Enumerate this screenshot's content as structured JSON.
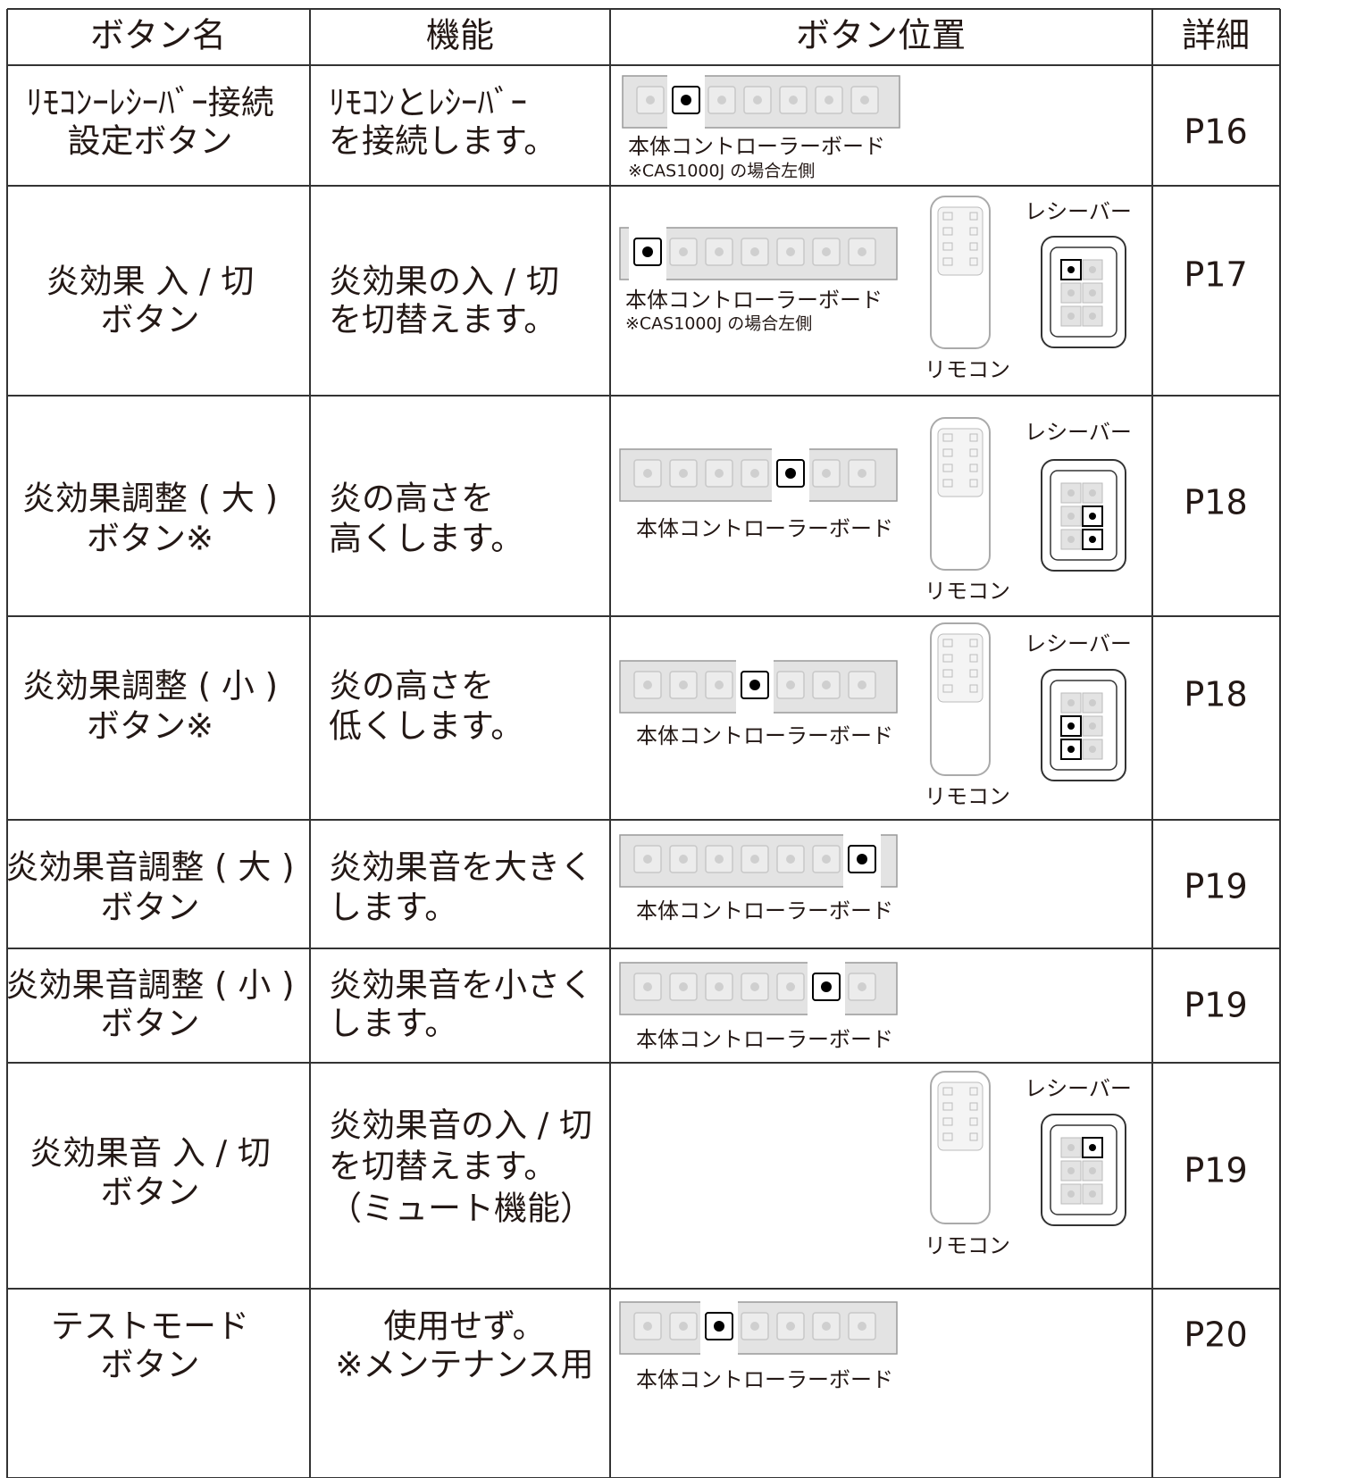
{
  "header": [
    "ボタン名",
    "機能",
    "ボタン位置",
    "詳細"
  ],
  "rows": [
    {
      "name": [
        "ﾘﾓｺﾝｰﾚｼｰﾊﾞｰ接続",
        "設定ボタン"
      ],
      "function": [
        "ﾘﾓｺﾝとﾚｼｰﾊﾞｰ",
        "を接続します。"
      ],
      "board_label": "本体コントローラーボード",
      "board_note": "※CAS1000J の場合左側",
      "detail": "P16"
    },
    {
      "name": [
        "炎効果 入 / 切",
        "ボタン"
      ],
      "function": [
        "炎効果の入 / 切",
        "を切替えます。"
      ],
      "board_label": "本体コントローラーボード",
      "board_note": "※CAS1000J の場合左側",
      "remote_label": "リモコン",
      "receiver_label": "レシーバー",
      "detail": "P17"
    },
    {
      "name": [
        "炎効果調整 ( 大 )",
        "ボタン※"
      ],
      "function": [
        "炎の高さを",
        "高くします。"
      ],
      "board_label": "本体コントローラーボード",
      "remote_label": "リモコン",
      "receiver_label": "レシーバー",
      "detail": "P18"
    },
    {
      "name": [
        "炎効果調整 ( 小 )",
        "ボタン※"
      ],
      "function": [
        "炎の高さを",
        "低くします。"
      ],
      "board_label": "本体コントローラーボード",
      "remote_label": "リモコン",
      "receiver_label": "レシーバー",
      "detail": "P18"
    },
    {
      "name": [
        "炎効果音調整 ( 大 )",
        "ボタン"
      ],
      "function": [
        "炎効果音を大きく",
        "します。"
      ],
      "board_label": "本体コントローラーボード",
      "detail": "P19"
    },
    {
      "name": [
        "炎効果音調整 ( 小 )",
        "ボタン"
      ],
      "function": [
        "炎効果音を小さく",
        "します。"
      ],
      "board_label": "本体コントローラーボード",
      "detail": "P19"
    },
    {
      "name": [
        "炎効果音 入 / 切",
        "ボタン"
      ],
      "function": [
        "炎効果音の入 / 切",
        "を切替えます。",
        "（ミュート機能）"
      ],
      "remote_label": "リモコン",
      "receiver_label": "レシーバー",
      "detail": "P19"
    },
    {
      "name": [
        "テストモード",
        "ボタン"
      ],
      "function": [
        "使用せず。",
        "※メンテナンス用"
      ],
      "board_label": "本体コントローラーボード",
      "detail": "P20"
    }
  ]
}
